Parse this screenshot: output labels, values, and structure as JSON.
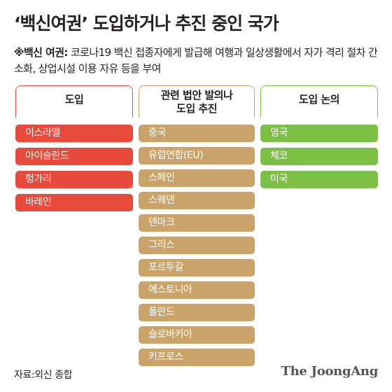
{
  "title": "‘백신여권’ 도입하거나 추진 중인 국가",
  "note": {
    "mark": "※백신 여권:",
    "text": " 코로나19 백신 접종자에게 발급해 여행과 일상생활에서 자가 격리 절차 간소화, 상업시설 이용 자유 등을 부여"
  },
  "columns": [
    {
      "header": "도입",
      "items": [
        "이스라엘",
        "아이슬란드",
        "헝가리",
        "바레인"
      ]
    },
    {
      "header_line1": "관련 법안 발의나",
      "header_line2": "도입 추진",
      "items": [
        "중국",
        "유럽연합(EU)",
        "스페인",
        "스웨덴",
        "덴마크",
        "그리스",
        "포르투갈",
        "에스토니아",
        "폴란드",
        "슬로바키아",
        "키프로스"
      ]
    },
    {
      "header": "도입 논의",
      "items": [
        "영국",
        "체코",
        "미국"
      ]
    }
  ],
  "source": "자료:외신 종합",
  "logo": "The JoongAng",
  "colors": {
    "red": "#e84a3c",
    "tan": "#c9a36a",
    "green": "#7cbf45"
  }
}
